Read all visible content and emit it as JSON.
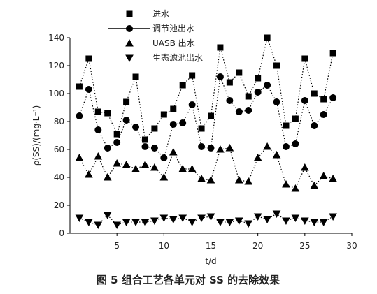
{
  "chart_data": {
    "type": "line",
    "title": "",
    "caption": "图 5   组合工艺各单元对 SS 的去除效果",
    "xlabel": "t/d",
    "ylabel": "ρ(SS)/(mg·L⁻¹)",
    "xlim": [
      0,
      30
    ],
    "ylim": [
      0,
      140
    ],
    "xticks": [
      5,
      10,
      15,
      20,
      25,
      30
    ],
    "yticks": [
      0,
      20,
      40,
      60,
      80,
      100,
      120,
      140
    ],
    "grid": false,
    "legend_position": "top-left",
    "x": [
      1,
      2,
      3,
      4,
      5,
      6,
      7,
      8,
      9,
      10,
      11,
      12,
      13,
      14,
      15,
      16,
      17,
      18,
      19,
      20,
      21,
      22,
      23,
      24,
      25,
      26,
      27,
      28
    ],
    "series": [
      {
        "name": "进水",
        "marker": "square",
        "line": "dotted",
        "values": [
          105,
          125,
          87,
          86,
          71,
          94,
          112,
          67,
          75,
          85,
          89,
          106,
          113,
          75,
          84,
          133,
          108,
          115,
          98,
          111,
          140,
          120,
          77,
          82,
          125,
          100,
          96,
          129
        ]
      },
      {
        "name": "调节池出水",
        "marker": "circle",
        "line": "dotted",
        "values": [
          84,
          103,
          74,
          61,
          65,
          81,
          76,
          62,
          61,
          54,
          78,
          79,
          92,
          62,
          61,
          112,
          95,
          87,
          88,
          101,
          106,
          94,
          62,
          64,
          95,
          77,
          85,
          97
        ]
      },
      {
        "name": "UASB 出水",
        "marker": "triangle-up",
        "line": "dotted",
        "values": [
          54,
          42,
          55,
          40,
          50,
          49,
          46,
          49,
          47,
          40,
          58,
          46,
          46,
          39,
          38,
          60,
          61,
          38,
          37,
          54,
          62,
          56,
          35,
          32,
          47,
          34,
          41,
          39
        ]
      },
      {
        "name": "生态滤池出水",
        "marker": "triangle-down",
        "line": "dotted",
        "values": [
          11,
          8,
          6,
          13,
          6,
          8,
          8,
          8,
          9,
          11,
          10,
          11,
          8,
          11,
          12,
          8,
          8,
          9,
          7,
          12,
          10,
          14,
          9,
          11,
          9,
          8,
          8,
          12
        ]
      }
    ]
  }
}
